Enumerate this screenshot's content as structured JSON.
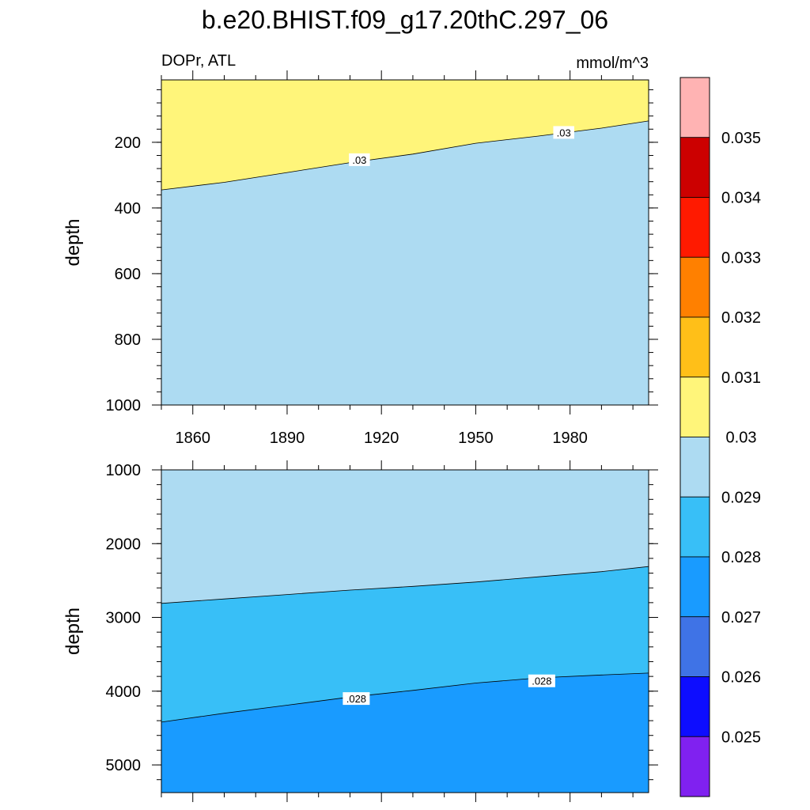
{
  "title": "b.e20.BHIST.f09_g17.20thC.297_06",
  "chart_data": [
    {
      "type": "contour",
      "panel": "upper",
      "left_string": "DOPr, ATL",
      "right_string": "mmol/m^3",
      "xlabel": "",
      "ylabel": "depth",
      "xlim": [
        1850,
        2005
      ],
      "ylim": [
        0,
        1000
      ],
      "y_reversed": true,
      "x_ticks": [
        1860,
        1890,
        1920,
        1950,
        1980
      ],
      "x_tick_labels": [
        "1860",
        "1890",
        "1920",
        "1950",
        "1980"
      ],
      "y_ticks": [
        200,
        400,
        600,
        800,
        1000
      ],
      "y_tick_labels": [
        "200",
        "400",
        "600",
        "800",
        "1000"
      ],
      "y_range_plotted": [
        10,
        1000
      ],
      "contours": [
        {
          "level": 0.03,
          "label": ".03",
          "above_color": "#fff57a",
          "below_color": "#addbf2",
          "x": [
            1850,
            1870,
            1890,
            1910,
            1930,
            1950,
            1970,
            1990,
            2005
          ],
          "y": [
            345,
            322,
            292,
            262,
            236,
            203,
            181,
            157,
            135
          ]
        }
      ],
      "contour_labels": [
        {
          "text": ".03",
          "x": 1913,
          "y": 253
        },
        {
          "text": ".03",
          "x": 1978,
          "y": 170
        }
      ]
    },
    {
      "type": "contour",
      "panel": "lower",
      "left_string": "",
      "right_string": "",
      "xlabel": "",
      "ylabel": "depth",
      "xlim": [
        1850,
        2005
      ],
      "ylim": [
        1000,
        5375
      ],
      "y_reversed": true,
      "x_ticks": [
        1860,
        1890,
        1920,
        1950,
        1980
      ],
      "y_ticks": [
        1000,
        2000,
        3000,
        4000,
        5000
      ],
      "y_tick_labels": [
        "1000",
        "2000",
        "3000",
        "4000",
        "5000"
      ],
      "contours": [
        {
          "level": 0.029,
          "label": "",
          "above_color": "#addbf2",
          "below_color": "#38bff7",
          "x": [
            1850,
            1870,
            1890,
            1910,
            1930,
            1950,
            1970,
            1990,
            2005
          ],
          "y": [
            2810,
            2750,
            2690,
            2630,
            2580,
            2520,
            2450,
            2380,
            2310
          ]
        },
        {
          "level": 0.028,
          "label": ".028",
          "above_color": "#38bff7",
          "below_color": "#199bff",
          "x": [
            1850,
            1870,
            1890,
            1910,
            1930,
            1950,
            1970,
            1990,
            2005
          ],
          "y": [
            4420,
            4300,
            4190,
            4080,
            3990,
            3890,
            3820,
            3780,
            3755
          ]
        }
      ],
      "contour_labels": [
        {
          "text": ".028",
          "x": 1912,
          "y": 4100
        },
        {
          "text": ".028",
          "x": 1971,
          "y": 3860
        }
      ]
    }
  ],
  "colorbar": {
    "colors": [
      "#ffb3b3",
      "#cc0000",
      "#ff1a00",
      "#ff8000",
      "#ffbf18",
      "#fff57a",
      "#addbf2",
      "#38bff7",
      "#199bff",
      "#3f73e6",
      "#0d0dff",
      "#8021f0"
    ],
    "labels": [
      "0.035",
      "0.034",
      "0.033",
      "0.032",
      "0.031",
      "0.03",
      "0.029",
      "0.028",
      "0.027",
      "0.026",
      "0.025"
    ]
  }
}
